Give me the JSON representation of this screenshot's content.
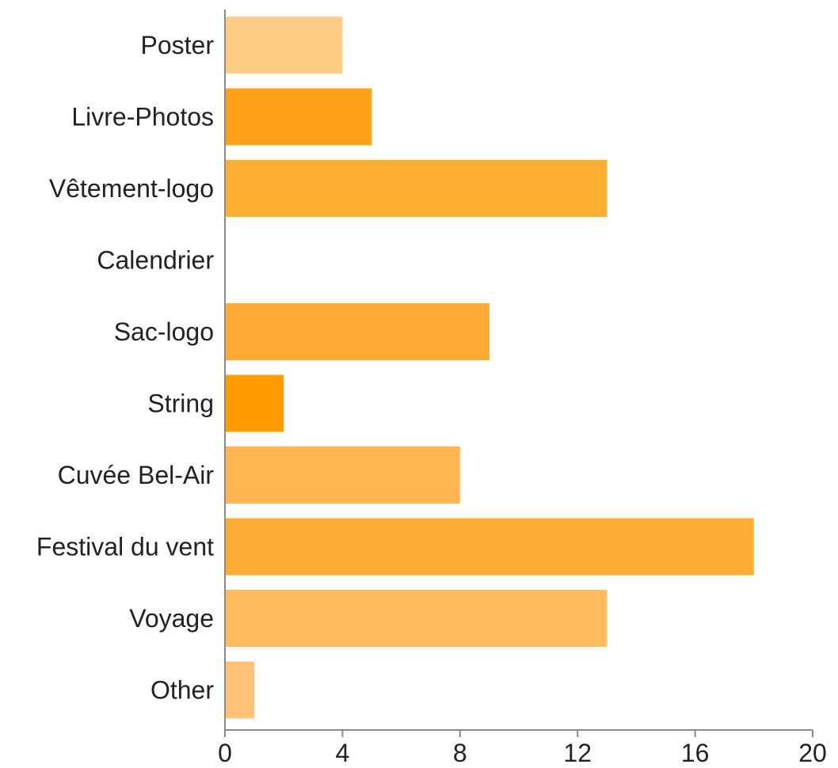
{
  "chart_data": {
    "type": "bar",
    "orientation": "horizontal",
    "categories": [
      "Poster",
      "Livre-Photos",
      "Vêtement-logo",
      "Calendrier",
      "Sac-logo",
      "String",
      "Cuvée Bel-Air",
      "Festival du vent",
      "Voyage",
      "Other"
    ],
    "values": [
      4,
      5,
      13,
      0,
      9,
      2,
      8,
      18,
      13,
      1
    ],
    "bar_colors": [
      "#ffcc85",
      "#ffa11a",
      "#ffad33",
      "#ffad33",
      "#ffab33",
      "#ff9d00",
      "#ffb750",
      "#ffac35",
      "#ffbb5c",
      "#ffc477"
    ],
    "xlim": [
      0,
      20
    ],
    "xticks": [
      0,
      4,
      8,
      12,
      16,
      20
    ],
    "xtick_labels": [
      "0",
      "4",
      "8",
      "12",
      "16",
      "20"
    ],
    "title": "",
    "xlabel": "",
    "ylabel": "",
    "grid": false,
    "legend": "none"
  }
}
